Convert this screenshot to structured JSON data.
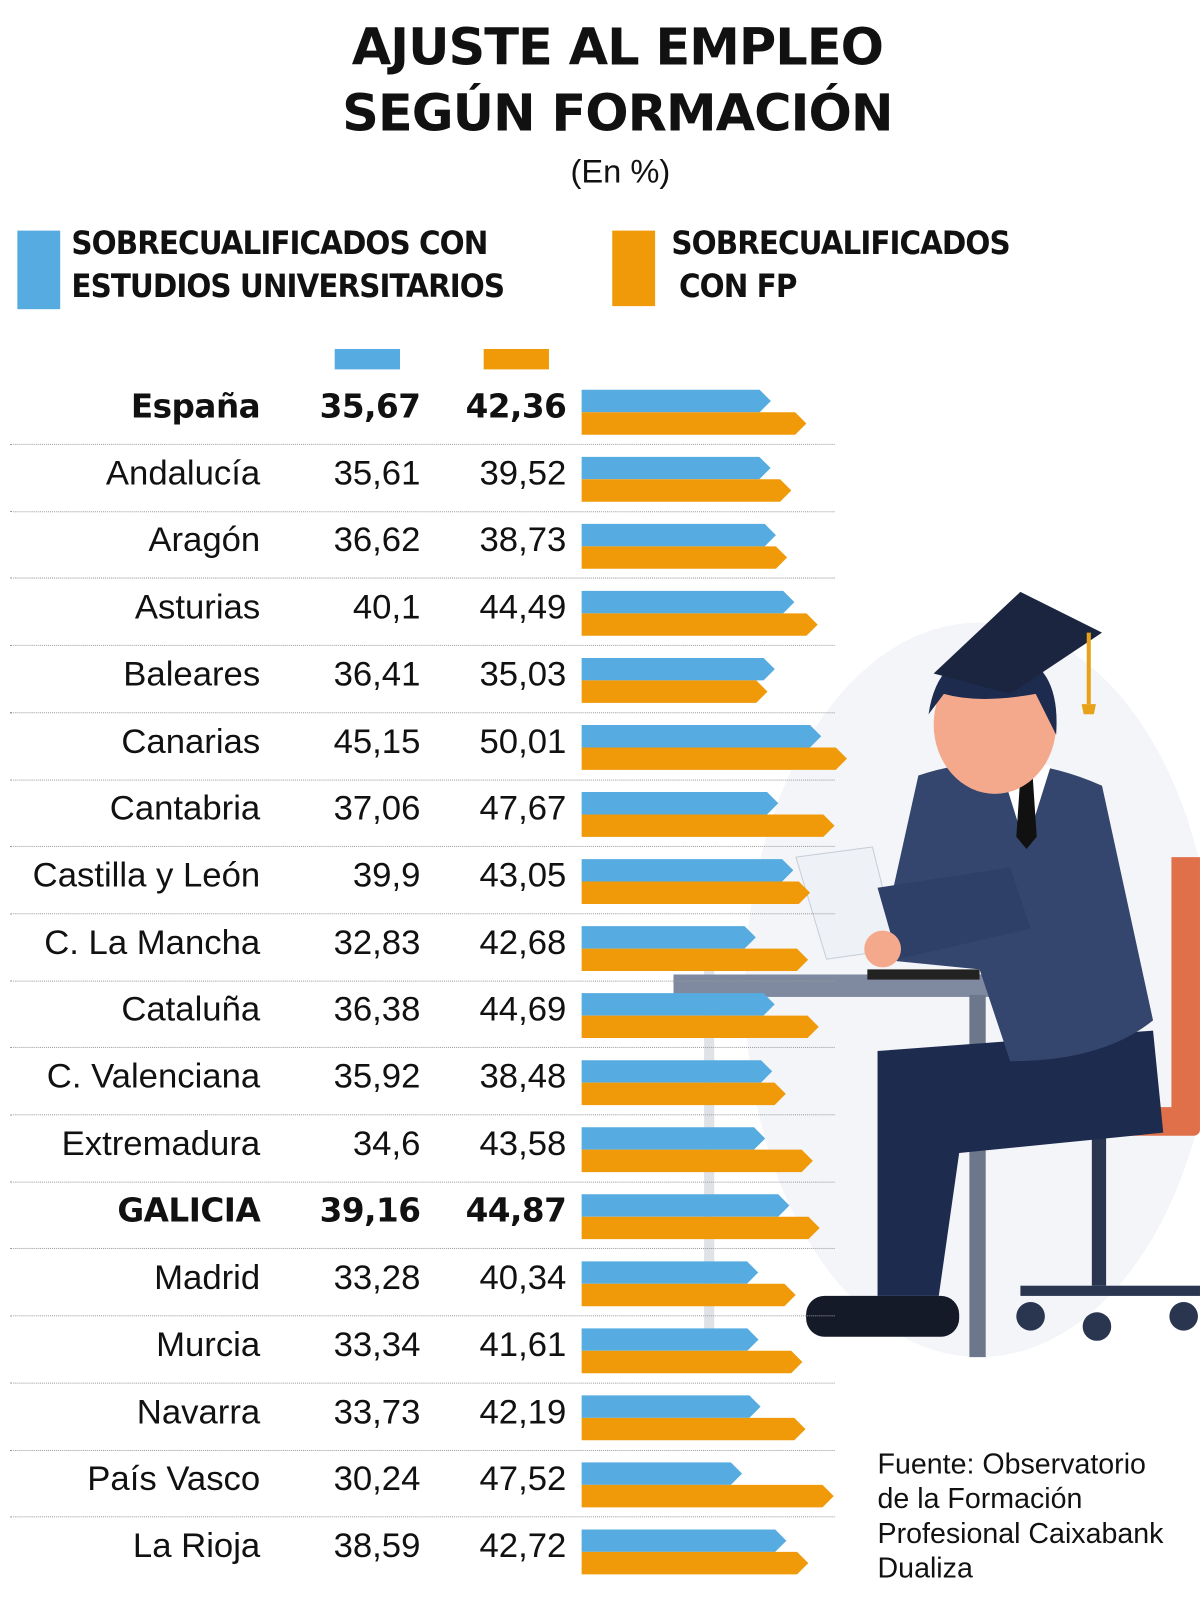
{
  "header": {
    "title_line1": "AJUSTE AL EMPLEO",
    "title_line2": "SEGÚN FORMACIÓN",
    "subtitle": "(En %)"
  },
  "legend": {
    "series1": {
      "line1": "SOBRECUALIFICADOS CON",
      "line2": "ESTUDIOS UNIVERSITARIOS",
      "color": "#56ACE0"
    },
    "series2": {
      "line1": "SOBRECUALIFICADOS",
      "line2": "CON FP",
      "color": "#F09A0A"
    }
  },
  "source": {
    "line1": "Fuente: Observatorio",
    "line2": "de la Formación",
    "line3": "Profesional Caixabank",
    "line4": "Dualiza"
  },
  "chart_data": {
    "type": "bar",
    "orientation": "horizontal",
    "title": "AJUSTE AL EMPLEO SEGÚN FORMACIÓN",
    "subtitle": "(En %)",
    "categories": [
      "España",
      "Andalucía",
      "Aragón",
      "Asturias",
      "Baleares",
      "Canarias",
      "Cantabria",
      "Castilla y León",
      "C. La Mancha",
      "Cataluña",
      "C. Valenciana",
      "Extremadura",
      "GALICIA",
      "Madrid",
      "Murcia",
      "Navarra",
      "País Vasco",
      "La Rioja"
    ],
    "labels1": [
      "35,67",
      "35,61",
      "36,62",
      "40,1",
      "36,41",
      "45,15",
      "37,06",
      "39,9",
      "32,83",
      "36,38",
      "35,92",
      "34,6",
      "39,16",
      "33,28",
      "33,34",
      "33,73",
      "30,24",
      "38,59"
    ],
    "labels2": [
      "42,36",
      "39,52",
      "38,73",
      "44,49",
      "35,03",
      "50,01",
      "47,67",
      "43,05",
      "42,68",
      "44,69",
      "38,48",
      "43,58",
      "44,87",
      "40,34",
      "41,61",
      "42,19",
      "47,52",
      "42,72"
    ],
    "bold_rows": [
      "España",
      "GALICIA"
    ],
    "series": [
      {
        "name": "SOBRECUALIFICADOS CON ESTUDIOS UNIVERSITARIOS",
        "color": "#56ACE0",
        "values": [
          35.67,
          35.61,
          36.62,
          40.1,
          36.41,
          45.15,
          37.06,
          39.9,
          32.83,
          36.38,
          35.92,
          34.6,
          39.16,
          33.28,
          33.34,
          33.73,
          30.24,
          38.59
        ]
      },
      {
        "name": "SOBRECUALIFICADOS CON FP",
        "color": "#F09A0A",
        "values": [
          42.36,
          39.52,
          38.73,
          44.49,
          35.03,
          50.01,
          47.67,
          43.05,
          42.68,
          44.69,
          38.48,
          43.58,
          44.87,
          40.34,
          41.61,
          42.19,
          47.52,
          42.72
        ]
      }
    ],
    "grid": false,
    "legend_position": "top"
  }
}
